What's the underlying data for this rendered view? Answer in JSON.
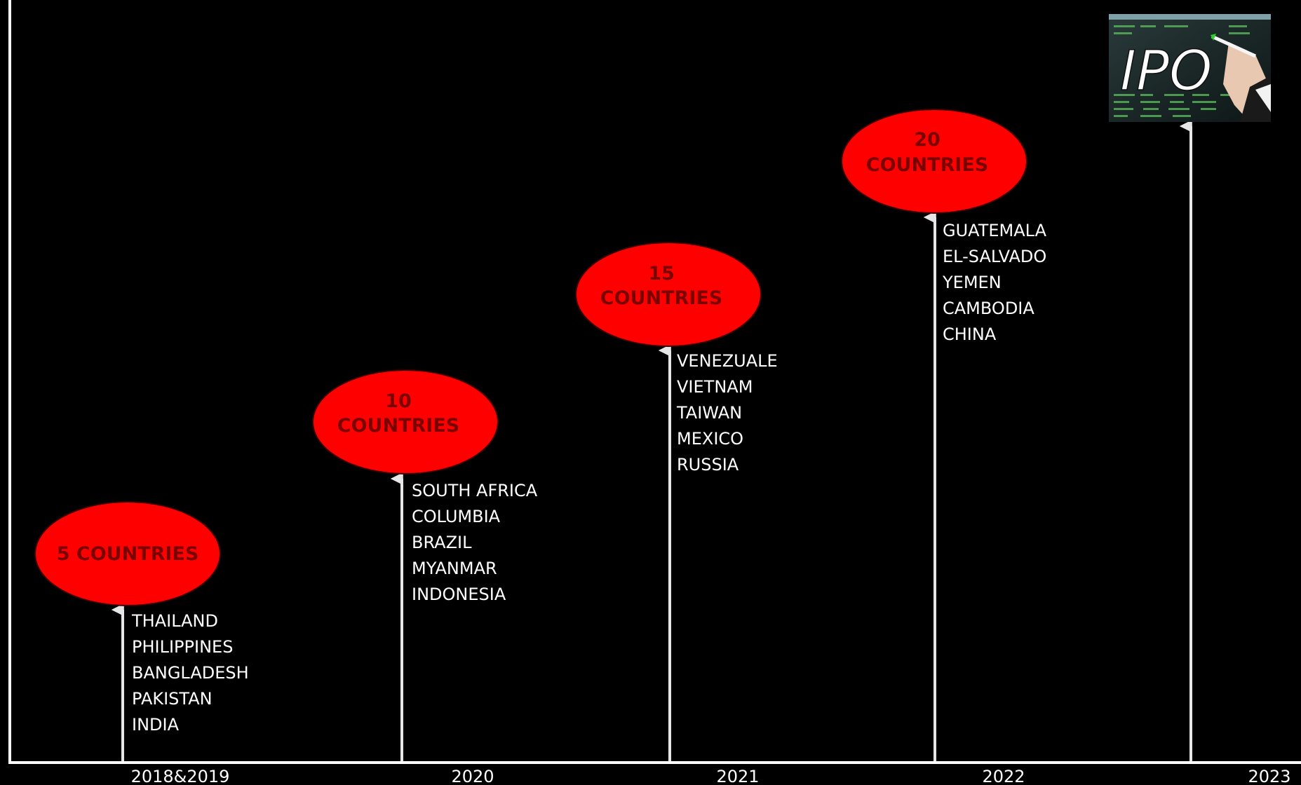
{
  "timeline": {
    "milestones": [
      {
        "year": "2018&2019",
        "badge_lines": [
          "5 COUNTRIES"
        ],
        "countries": [
          "THAILAND",
          "PHILIPPINES",
          "BANGLADESH",
          "PAKISTAN",
          "INDIA"
        ]
      },
      {
        "year": "2020",
        "badge_lines": [
          "10",
          "COUNTRIES"
        ],
        "countries": [
          "SOUTH AFRICA",
          "COLUMBIA",
          "BRAZIL",
          "MYANMAR",
          "INDONESIA"
        ]
      },
      {
        "year": "2021",
        "badge_lines": [
          "15",
          "COUNTRIES"
        ],
        "countries": [
          "VENEZUALE",
          "VIETNAM",
          "TAIWAN",
          "MEXICO",
          "RUSSIA"
        ]
      },
      {
        "year": "2022",
        "badge_lines": [
          "20",
          "COUNTRIES"
        ],
        "countries": [
          "GUATEMALA",
          "EL-SALVADO",
          "YEMEN",
          "CAMBODIA",
          "CHINA"
        ]
      }
    ],
    "final": {
      "year": "2023",
      "image_label": "IPO"
    }
  },
  "colors": {
    "background": "#000000",
    "axis": "#ffffff",
    "arrow": "#e6e6e6",
    "badge_fill": "#ff0000",
    "badge_text": "#7a0000",
    "text": "#ffffff"
  }
}
